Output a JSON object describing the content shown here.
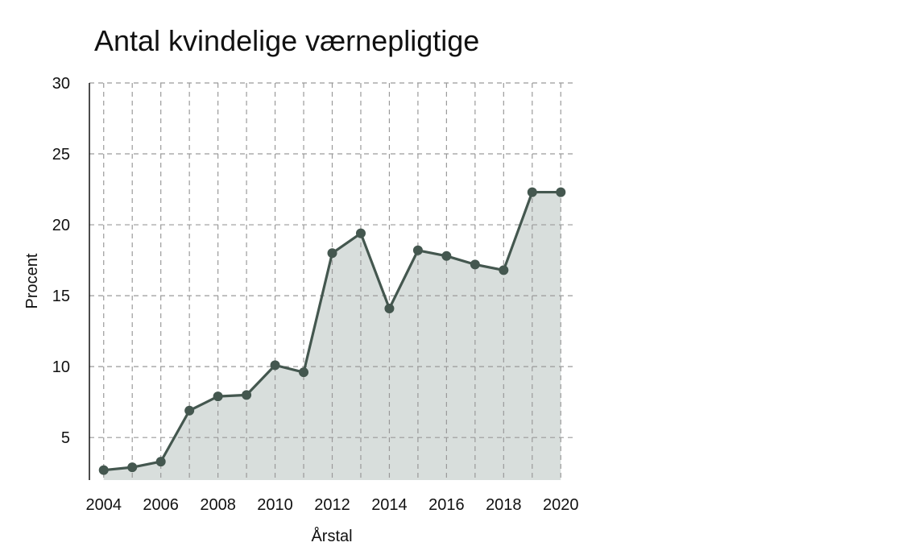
{
  "chart_data": {
    "type": "area",
    "title": "Antal kvindelige værnepligtige",
    "xlabel": "Årstal",
    "ylabel": "Procent",
    "x": [
      2004,
      2005,
      2006,
      2007,
      2008,
      2009,
      2010,
      2011,
      2012,
      2013,
      2014,
      2015,
      2016,
      2017,
      2018,
      2019,
      2020
    ],
    "series": [
      {
        "values": [
          2.7,
          2.9,
          3.3,
          6.9,
          7.9,
          8.0,
          10.1,
          9.6,
          18.0,
          19.4,
          14.1,
          18.2,
          17.8,
          17.2,
          16.8,
          22.3,
          22.3
        ]
      }
    ],
    "xticks": [
      "2004",
      "2006",
      "2008",
      "2010",
      "2012",
      "2014",
      "2016",
      "2018",
      "2020"
    ],
    "yticks": [
      "5",
      "10",
      "15",
      "20",
      "25",
      "30"
    ],
    "xlim": [
      2003.5,
      2020.5
    ],
    "ylim": [
      2,
      30
    ],
    "grid": true,
    "colors": {
      "line": "#44574f",
      "fill": "#d8dedc",
      "grid": "#9a9a9a"
    }
  }
}
